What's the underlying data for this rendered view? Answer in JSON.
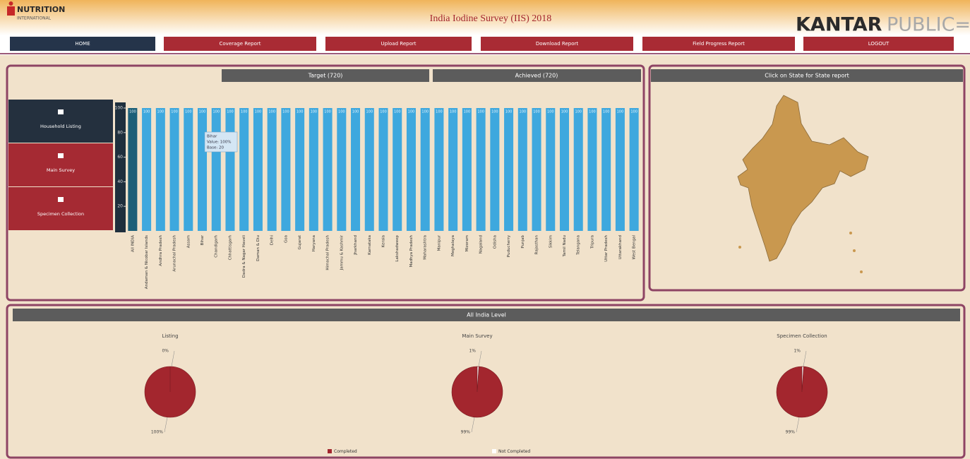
{
  "header": {
    "logo_title": "NUTRITION",
    "logo_subtitle": "INTERNATIONAL",
    "title": "India Iodine Survey (IIS) 2018",
    "brand_main": "KANTAR",
    "brand_sub": "PUBLIC="
  },
  "nav": [
    "HOME",
    "Coverage Report",
    "Upload Report",
    "Download Report",
    "Field Progress Report",
    "LOGOUT"
  ],
  "side_menu": [
    "Household Listing",
    "Main Survey",
    "Specimen Collection"
  ],
  "summary": {
    "target": "Target (720)",
    "achieved": "Achieved (720)"
  },
  "map_panel": {
    "title": "Click on State for State report"
  },
  "chart_data": {
    "type": "bar",
    "categories": [
      "All INDIA",
      "Andaman & Nicobar Islands",
      "Andhra Pradesh",
      "Arunachal Pradesh",
      "Assam",
      "Bihar",
      "Chandigarh",
      "Chhattisgarh",
      "Dadra & Nagar Haveli",
      "Daman & Diu",
      "Delhi",
      "Goa",
      "Gujarat",
      "Haryana",
      "Himachal Pradesh",
      "Jammu & Kashmir",
      "Jharkhand",
      "Karnataka",
      "Kerala",
      "Lakshadweep",
      "Madhya Pradesh",
      "Maharashtra",
      "Manipur",
      "Meghalaya",
      "Mizoram",
      "Nagaland",
      "Odisha",
      "Puducherry",
      "Punjab",
      "Rajasthan",
      "Sikkim",
      "Tamil Nadu",
      "Telangana",
      "Tripura",
      "Uttar Pradesh",
      "Uttarakhand",
      "West Bengal"
    ],
    "values": [
      100,
      100,
      100,
      100,
      100,
      100,
      100,
      100,
      100,
      100,
      100,
      100,
      100,
      100,
      100,
      100,
      100,
      100,
      100,
      100,
      100,
      100,
      100,
      100,
      100,
      100,
      100,
      100,
      100,
      100,
      100,
      100,
      100,
      100,
      100,
      100,
      100
    ],
    "colors": [
      "#1c5f78",
      "#3ea8de"
    ],
    "ylim": [
      0,
      100
    ],
    "yticks": [
      20,
      40,
      60,
      80,
      100
    ],
    "tooltip": [
      "Bihar",
      "Value: 100%",
      "Base: 20"
    ]
  },
  "all_india": {
    "title": "All India Level",
    "legend": [
      "Completed",
      "Not Completed"
    ],
    "colors": [
      "#a3262e",
      "#ffffff"
    ],
    "pies": [
      {
        "type": "pie",
        "title": "Listing",
        "values": [
          100,
          0
        ],
        "value_labels": [
          "100%",
          "0%"
        ]
      },
      {
        "type": "pie",
        "title": "Main Survey",
        "values": [
          99,
          1
        ],
        "value_labels": [
          "99%",
          "1%"
        ]
      },
      {
        "type": "pie",
        "title": "Specimen Collection",
        "values": [
          99,
          1
        ],
        "value_labels": [
          "99%",
          "1%"
        ]
      }
    ]
  }
}
